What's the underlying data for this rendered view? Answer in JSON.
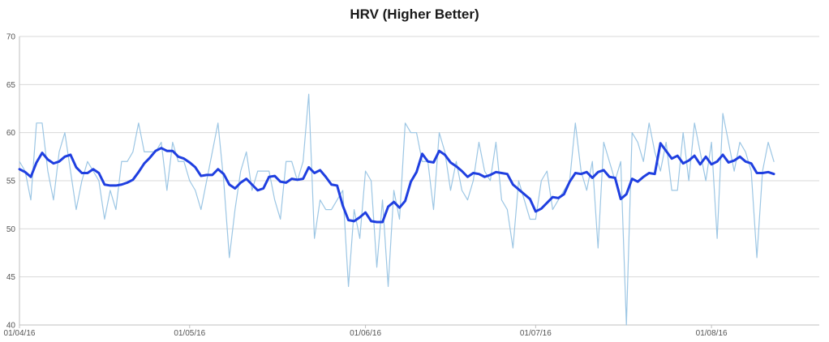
{
  "chart_data": {
    "type": "line",
    "title": "HRV (Higher Better)",
    "xlabel": "",
    "ylabel": "",
    "x_range": [
      "2016-04-01",
      "2016-08-20"
    ],
    "ylim": [
      40,
      70
    ],
    "yticks": [
      40,
      45,
      50,
      55,
      60,
      65,
      70
    ],
    "xticks": [
      {
        "date": "2016-04-01",
        "label": "01/04/16"
      },
      {
        "date": "2016-05-01",
        "label": "01/05/16"
      },
      {
        "date": "2016-06-01",
        "label": "01/06/16"
      },
      {
        "date": "2016-07-01",
        "label": "01/07/16"
      },
      {
        "date": "2016-08-01",
        "label": "01/08/16"
      }
    ],
    "grid": "horizontal",
    "legend": "none",
    "colors": {
      "daily": "#9cc6e4",
      "average": "#1f3fe0",
      "grid": "#d9d9d9",
      "axis": "#bfbfbf"
    },
    "series": [
      {
        "key": "daily",
        "x": [
          "2016-04-01",
          "2016-04-02",
          "2016-04-03",
          "2016-04-04",
          "2016-04-05",
          "2016-04-06",
          "2016-04-07",
          "2016-04-08",
          "2016-04-09",
          "2016-04-10",
          "2016-04-11",
          "2016-04-12",
          "2016-04-13",
          "2016-04-14",
          "2016-04-15",
          "2016-04-16",
          "2016-04-17",
          "2016-04-18",
          "2016-04-19",
          "2016-04-20",
          "2016-04-21",
          "2016-04-22",
          "2016-04-23",
          "2016-04-24",
          "2016-04-25",
          "2016-04-26",
          "2016-04-27",
          "2016-04-28",
          "2016-04-29",
          "2016-04-30",
          "2016-05-01",
          "2016-05-02",
          "2016-05-03",
          "2016-05-04",
          "2016-05-05",
          "2016-05-06",
          "2016-05-07",
          "2016-05-08",
          "2016-05-09",
          "2016-05-10",
          "2016-05-11",
          "2016-05-12",
          "2016-05-13",
          "2016-05-14",
          "2016-05-15",
          "2016-05-16",
          "2016-05-17",
          "2016-05-18",
          "2016-05-19",
          "2016-05-20",
          "2016-05-21",
          "2016-05-22",
          "2016-05-23",
          "2016-05-24",
          "2016-05-25",
          "2016-05-26",
          "2016-05-27",
          "2016-05-28",
          "2016-05-29",
          "2016-05-30",
          "2016-05-31",
          "2016-06-01",
          "2016-06-02",
          "2016-06-03",
          "2016-06-04",
          "2016-06-05",
          "2016-06-06",
          "2016-06-07",
          "2016-06-08",
          "2016-06-09",
          "2016-06-10",
          "2016-06-11",
          "2016-06-12",
          "2016-06-13",
          "2016-06-14",
          "2016-06-15",
          "2016-06-16",
          "2016-06-17",
          "2016-06-18",
          "2016-06-19",
          "2016-06-20",
          "2016-06-21",
          "2016-06-22",
          "2016-06-23",
          "2016-06-24",
          "2016-06-25",
          "2016-06-26",
          "2016-06-27",
          "2016-06-28",
          "2016-06-29",
          "2016-06-30",
          "2016-07-01",
          "2016-07-02",
          "2016-07-03",
          "2016-07-04",
          "2016-07-05",
          "2016-07-06",
          "2016-07-07",
          "2016-07-08",
          "2016-07-09",
          "2016-07-10",
          "2016-07-11",
          "2016-07-12",
          "2016-07-13",
          "2016-07-14",
          "2016-07-15",
          "2016-07-16",
          "2016-07-17",
          "2016-07-18",
          "2016-07-19",
          "2016-07-20",
          "2016-07-21",
          "2016-07-22",
          "2016-07-23",
          "2016-07-24",
          "2016-07-25",
          "2016-07-26",
          "2016-07-27",
          "2016-07-28",
          "2016-07-29",
          "2016-07-30",
          "2016-07-31",
          "2016-08-01",
          "2016-08-02",
          "2016-08-03",
          "2016-08-04",
          "2016-08-05",
          "2016-08-06",
          "2016-08-07",
          "2016-08-08",
          "2016-08-09",
          "2016-08-10",
          "2016-08-11",
          "2016-08-12"
        ],
        "values": [
          57,
          56,
          53,
          61,
          61,
          56,
          53,
          58,
          60,
          56,
          52,
          55,
          57,
          56,
          55,
          51,
          54,
          52,
          57,
          57,
          58,
          61,
          58,
          58,
          58,
          59,
          54,
          59,
          57,
          57,
          55,
          54,
          52,
          55,
          58,
          61,
          55,
          47,
          52,
          56,
          58,
          54,
          56,
          56,
          56,
          53,
          51,
          57,
          57,
          55,
          57,
          64,
          49,
          53,
          52,
          52,
          53,
          54,
          44,
          52,
          49,
          56,
          55,
          46,
          53,
          44,
          54,
          51,
          61,
          60,
          60,
          57,
          57,
          52,
          60,
          58,
          54,
          57,
          54,
          53,
          55,
          59,
          56,
          55,
          59,
          53,
          52,
          48,
          55,
          53,
          51,
          51,
          55,
          56,
          52,
          53,
          54,
          55,
          61,
          56,
          54,
          57,
          48,
          59,
          57,
          55,
          57,
          40,
          60,
          59,
          57,
          61,
          58,
          56,
          59,
          54,
          54,
          60,
          55,
          61,
          58,
          55,
          59,
          49,
          62,
          59,
          56,
          59,
          58,
          56,
          47,
          56,
          59,
          57
        ],
        "step_days": 1
      },
      {
        "key": "average",
        "x": [
          "2016-04-01",
          "2016-04-02",
          "2016-04-03",
          "2016-04-04",
          "2016-04-05",
          "2016-04-06",
          "2016-04-07",
          "2016-04-08",
          "2016-04-09",
          "2016-04-10",
          "2016-04-11",
          "2016-04-12",
          "2016-04-13",
          "2016-04-14",
          "2016-04-15",
          "2016-04-16",
          "2016-04-17",
          "2016-04-18",
          "2016-04-19",
          "2016-04-20",
          "2016-04-21",
          "2016-04-22",
          "2016-04-23",
          "2016-04-24",
          "2016-04-25",
          "2016-04-26",
          "2016-04-27",
          "2016-04-28",
          "2016-04-29",
          "2016-04-30",
          "2016-05-01",
          "2016-05-02",
          "2016-05-03",
          "2016-05-04",
          "2016-05-05",
          "2016-05-06",
          "2016-05-07",
          "2016-05-08",
          "2016-05-09",
          "2016-05-10",
          "2016-05-11",
          "2016-05-12",
          "2016-05-13",
          "2016-05-14",
          "2016-05-15",
          "2016-05-16",
          "2016-05-17",
          "2016-05-18",
          "2016-05-19",
          "2016-05-20",
          "2016-05-21",
          "2016-05-22",
          "2016-05-23",
          "2016-05-24",
          "2016-05-25",
          "2016-05-26",
          "2016-05-27",
          "2016-05-28",
          "2016-05-29",
          "2016-05-30",
          "2016-05-31",
          "2016-06-01",
          "2016-06-02",
          "2016-06-03",
          "2016-06-04",
          "2016-06-05",
          "2016-06-06",
          "2016-06-07",
          "2016-06-08",
          "2016-06-09",
          "2016-06-10",
          "2016-06-11",
          "2016-06-12",
          "2016-06-13",
          "2016-06-14",
          "2016-06-15",
          "2016-06-16",
          "2016-06-17",
          "2016-06-18",
          "2016-06-19",
          "2016-06-20",
          "2016-06-21",
          "2016-06-22",
          "2016-06-23",
          "2016-06-24",
          "2016-06-25",
          "2016-06-26",
          "2016-06-27",
          "2016-06-28",
          "2016-06-29",
          "2016-06-30",
          "2016-07-01",
          "2016-07-02",
          "2016-07-03",
          "2016-07-04",
          "2016-07-05",
          "2016-07-06",
          "2016-07-07",
          "2016-07-08",
          "2016-07-09",
          "2016-07-10",
          "2016-07-11",
          "2016-07-12",
          "2016-07-13",
          "2016-07-14",
          "2016-07-15",
          "2016-07-16",
          "2016-07-17",
          "2016-07-18",
          "2016-07-19",
          "2016-07-20",
          "2016-07-21",
          "2016-07-22",
          "2016-07-23",
          "2016-07-24",
          "2016-07-25",
          "2016-07-26",
          "2016-07-27",
          "2016-07-28",
          "2016-07-29",
          "2016-07-30",
          "2016-07-31",
          "2016-08-01",
          "2016-08-02",
          "2016-08-03",
          "2016-08-04",
          "2016-08-05",
          "2016-08-06",
          "2016-08-07",
          "2016-08-08",
          "2016-08-09",
          "2016-08-10",
          "2016-08-11",
          "2016-08-12"
        ],
        "values": [
          56.2,
          55.9,
          55.4,
          56.9,
          57.9,
          57.2,
          56.8,
          57.0,
          57.5,
          57.7,
          56.4,
          55.8,
          55.8,
          56.2,
          55.8,
          54.6,
          54.5,
          54.5,
          54.6,
          54.8,
          55.1,
          55.9,
          56.8,
          57.4,
          58.1,
          58.4,
          58.1,
          58.1,
          57.5,
          57.3,
          56.9,
          56.4,
          55.5,
          55.6,
          55.6,
          56.2,
          55.7,
          54.6,
          54.2,
          54.8,
          55.2,
          54.6,
          54.0,
          54.2,
          55.4,
          55.5,
          54.9,
          54.8,
          55.2,
          55.1,
          55.2,
          56.4,
          55.8,
          56.1,
          55.4,
          54.6,
          54.5,
          52.4,
          50.9,
          50.8,
          51.2,
          51.7,
          50.8,
          50.7,
          50.7,
          52.3,
          52.8,
          52.2,
          52.9,
          54.9,
          55.9,
          57.8,
          57.0,
          56.9,
          58.1,
          57.7,
          56.9,
          56.5,
          56.0,
          55.4,
          55.8,
          55.7,
          55.4,
          55.6,
          55.9,
          55.8,
          55.7,
          54.6,
          54.1,
          53.6,
          53.1,
          51.8,
          52.1,
          52.7,
          53.3,
          53.2,
          53.6,
          54.9,
          55.8,
          55.7,
          55.9,
          55.3,
          55.9,
          56.1,
          55.4,
          55.3,
          53.1,
          53.6,
          55.2,
          54.9,
          55.4,
          55.8,
          55.7,
          58.9,
          58.1,
          57.3,
          57.6,
          56.8,
          57.1,
          57.6,
          56.7,
          57.5,
          56.7,
          57.0,
          57.7,
          56.9,
          57.1,
          57.5,
          57.0,
          56.8,
          55.8,
          55.8,
          55.9,
          55.7
        ],
        "step_days": 1
      }
    ]
  }
}
